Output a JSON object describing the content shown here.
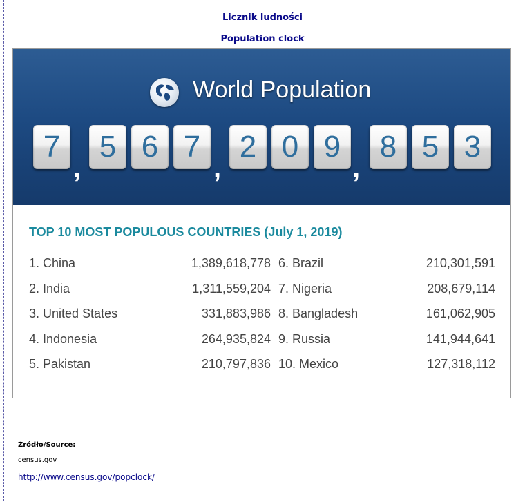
{
  "header": {
    "title_pl": "Licznik ludności",
    "title_en": "Population clock"
  },
  "banner": {
    "title": "World Population",
    "icon": "globe-icon",
    "digits": [
      "7",
      "5",
      "6",
      "7",
      "2",
      "0",
      "9",
      "8",
      "5",
      "3"
    ],
    "separator": ","
  },
  "countries": {
    "heading": "TOP 10 MOST POPULOUS COUNTRIES (July 1, 2019)",
    "left": [
      {
        "name": "1. China",
        "population": "1,389,618,778"
      },
      {
        "name": "2. India",
        "population": "1,311,559,204"
      },
      {
        "name": "3. United States",
        "population": "331,883,986"
      },
      {
        "name": "4. Indonesia",
        "population": "264,935,824"
      },
      {
        "name": "5. Pakistan",
        "population": "210,797,836"
      }
    ],
    "right": [
      {
        "name": "6. Brazil",
        "population": "210,301,591"
      },
      {
        "name": "7. Nigeria",
        "population": "208,679,114"
      },
      {
        "name": "8. Bangladesh",
        "population": "161,062,905"
      },
      {
        "name": "9. Russia",
        "population": "141,944,641"
      },
      {
        "name": "10. Mexico",
        "population": "127,318,112"
      }
    ]
  },
  "source": {
    "label": "Źródło/Source:",
    "name": "census.gov",
    "link": "http://www.census.gov/popclock/"
  },
  "colors": {
    "title": "#0b0b8a",
    "banner": "#1d4a82",
    "digit_text": "#2f6e9d",
    "heading": "#1b8a9e"
  }
}
